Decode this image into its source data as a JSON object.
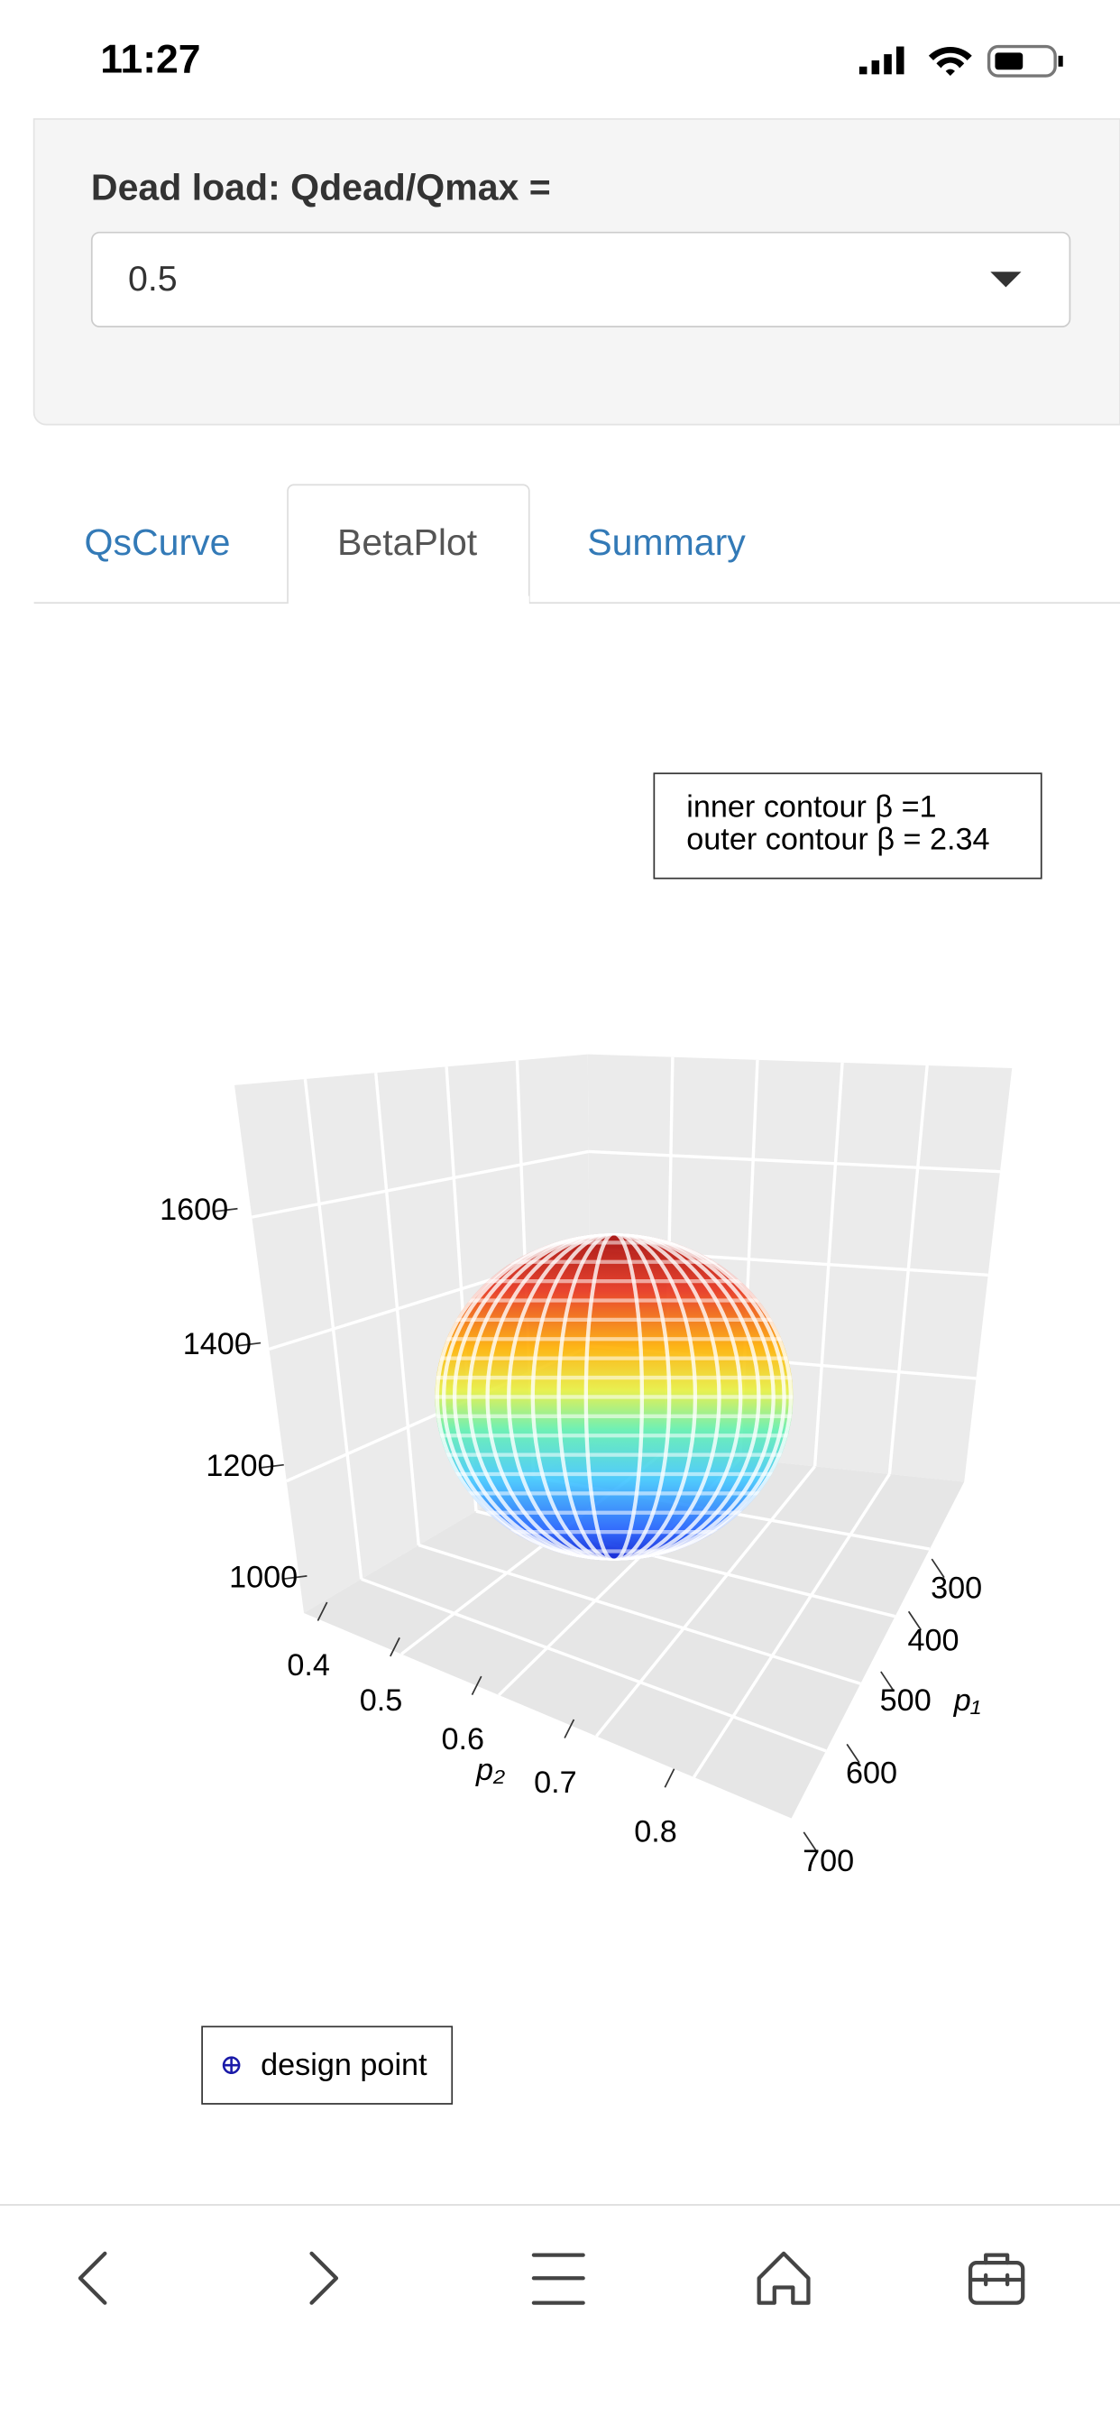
{
  "status": {
    "time": "11:27"
  },
  "panel": {
    "label": "Dead load: Qdead/Qmax =",
    "select_value": "0.5"
  },
  "tabs": [
    "QsCurve",
    "BetaPlot",
    "Summary"
  ],
  "plot": {
    "legend": [
      "inner contour β =1",
      "outer contour β = 2.34"
    ],
    "z_ticks": [
      1600,
      1400,
      1200,
      1000
    ],
    "x_ticks": [
      0.4,
      0.5,
      0.6,
      0.7,
      0.8
    ],
    "x_label": "p₂",
    "y_ticks": [
      300,
      400,
      500,
      600,
      700
    ],
    "y_label": "p₁",
    "design_point_label": "design point"
  }
}
